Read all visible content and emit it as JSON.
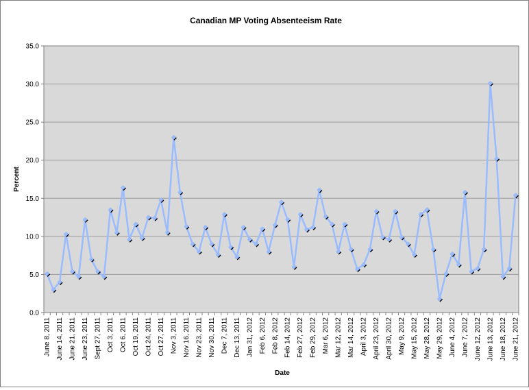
{
  "colors": {
    "plot_bg": "#d9d9d9",
    "grid": "#9a9a9a",
    "axis": "#7f7f7f",
    "line": "#99bbff",
    "marker": "#000000",
    "text": "#000000"
  },
  "chart_data": {
    "type": "line",
    "title": "Canadian MP Voting Absenteeism Rate",
    "xlabel": "Date",
    "ylabel": "Percent",
    "ylim": [
      0,
      35
    ],
    "y_ticks": [
      "0.0",
      "5.0",
      "10.0",
      "15.0",
      "20.0",
      "25.0",
      "30.0",
      "35.0"
    ],
    "grid": true,
    "legend": "none",
    "tick_labels": [
      "June 8, 2011",
      "June 14, 2011",
      "June 21, 2011",
      "June 23, 2011",
      "Sept 27, 2011",
      "Oct 3, 2011",
      "Oct 6, 2011",
      "Oct 19, 2011",
      "Oct 24, 2011",
      "Oct 27, 2011",
      "Nov 3, 2011",
      "Nov 16, 2011",
      "Nov 23, 2011",
      "Nov 30, 2011",
      "Dec 7, 2011",
      "Dec 13, 2011",
      "Jan 31, 2012",
      "Feb 6, 2012",
      "Feb 8, 2012",
      "Feb 14, 2012",
      "Feb 27, 2012",
      "Feb 29, 2012",
      "Mar 6, 2012",
      "Mar 12, 2012",
      "Mar 14, 2012",
      "April 3, 2012",
      "April 23, 2012",
      "April 30, 2012",
      "May 9, 2012",
      "May 15, 2012",
      "May 28, 2012",
      "May 29, 2012",
      "June 4, 2012",
      "June 7, 2012",
      "June 12, 2012",
      "June 13, 2012",
      "June 18, 2012",
      "June 21, 2012"
    ],
    "series": [
      {
        "name": "Absenteeism Rate",
        "values": [
          5.1,
          3.0,
          4.0,
          10.3,
          5.4,
          4.7,
          12.2,
          7.0,
          5.4,
          4.7,
          13.5,
          10.5,
          16.4,
          9.6,
          11.6,
          9.8,
          12.5,
          12.4,
          14.8,
          10.5,
          23.0,
          15.8,
          11.3,
          9.0,
          8.0,
          11.2,
          9.0,
          7.6,
          12.9,
          8.6,
          7.3,
          11.2,
          9.6,
          9.0,
          11.0,
          8.0,
          11.5,
          14.5,
          12.2,
          6.0,
          12.9,
          10.9,
          11.2,
          16.1,
          12.6,
          11.6,
          8.0,
          11.6,
          8.3,
          5.7,
          6.3,
          8.3,
          13.3,
          9.9,
          9.6,
          13.3,
          9.9,
          9.0,
          7.6,
          12.9,
          13.5,
          8.3,
          1.8,
          5.1,
          7.7,
          6.3,
          15.8,
          5.4,
          5.8,
          8.3,
          30.1,
          20.2,
          4.7,
          5.8,
          15.4
        ]
      }
    ]
  }
}
